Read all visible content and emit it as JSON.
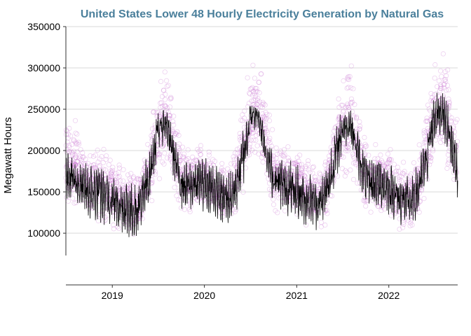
{
  "colors": {
    "title": "#4a7f9b",
    "points": "#c76fd0",
    "line": "#000000",
    "grid": "#d9d9d9",
    "axis": "#333333"
  },
  "chart_data": {
    "type": "scatter",
    "title": "United States Lower 48 Hourly Electricity Generation by Natural Gas",
    "xlabel": "",
    "ylabel": "Megawatt Hours",
    "x_ticks": [
      "2019",
      "2020",
      "2021",
      "2022"
    ],
    "y_ticks": [
      "100000",
      "150000",
      "200000",
      "250000",
      "300000",
      "350000"
    ],
    "xlim": [
      "2018-07-01",
      "2022-10-01"
    ],
    "ylim": [
      73000,
      350000
    ],
    "grid": "horizontal",
    "series": [
      {
        "kind": "points",
        "description": "hourly generation (open circles)",
        "x": [
          "2018-07-01",
          "2018-08-01",
          "2018-09-01",
          "2018-10-01",
          "2018-11-01",
          "2018-12-01",
          "2019-01-01",
          "2019-02-01",
          "2019-03-01",
          "2019-04-01",
          "2019-05-01",
          "2019-06-01",
          "2019-07-01",
          "2019-08-01",
          "2019-09-01",
          "2019-10-01",
          "2019-11-01",
          "2019-12-01",
          "2020-01-01",
          "2020-02-01",
          "2020-03-01",
          "2020-04-01",
          "2020-05-01",
          "2020-06-01",
          "2020-07-01",
          "2020-08-01",
          "2020-09-01",
          "2020-10-01",
          "2020-11-01",
          "2020-12-01",
          "2021-01-01",
          "2021-02-01",
          "2021-03-01",
          "2021-04-01",
          "2021-05-01",
          "2021-06-01",
          "2021-07-01",
          "2021-08-01",
          "2021-09-01",
          "2021-10-01",
          "2021-11-01",
          "2021-12-01",
          "2022-01-01",
          "2022-02-01",
          "2022-03-01",
          "2022-04-01",
          "2022-05-01",
          "2022-06-01",
          "2022-07-01",
          "2022-08-01",
          "2022-09-01",
          "2022-10-01"
        ],
        "min": [
          110000,
          115000,
          110000,
          100000,
          100000,
          100000,
          95000,
          90000,
          85000,
          85000,
          95000,
          120000,
          150000,
          155000,
          135000,
          115000,
          110000,
          115000,
          120000,
          115000,
          105000,
          100000,
          110000,
          135000,
          165000,
          170000,
          140000,
          120000,
          115000,
          115000,
          110000,
          105000,
          100000,
          95000,
          105000,
          130000,
          150000,
          150000,
          130000,
          115000,
          115000,
          110000,
          110000,
          100000,
          95000,
          95000,
          110000,
          135000,
          165000,
          170000,
          145000,
          125000
        ],
        "max": [
          265000,
          255000,
          230000,
          215000,
          215000,
          215000,
          205000,
          200000,
          185000,
          185000,
          200000,
          240000,
          300000,
          315000,
          265000,
          225000,
          215000,
          215000,
          210000,
          205000,
          200000,
          190000,
          215000,
          270000,
          315000,
          325000,
          275000,
          225000,
          220000,
          215000,
          210000,
          200000,
          195000,
          185000,
          215000,
          270000,
          300000,
          330000,
          270000,
          230000,
          220000,
          220000,
          215000,
          205000,
          195000,
          190000,
          215000,
          280000,
          330000,
          340000,
          300000,
          260000
        ]
      },
      {
        "kind": "line",
        "description": "daily average",
        "x": [
          "2018-07-01",
          "2018-08-01",
          "2018-09-01",
          "2018-10-01",
          "2018-11-01",
          "2018-12-01",
          "2019-01-01",
          "2019-02-01",
          "2019-03-01",
          "2019-04-01",
          "2019-05-01",
          "2019-06-01",
          "2019-07-01",
          "2019-08-01",
          "2019-09-01",
          "2019-10-01",
          "2019-11-01",
          "2019-12-01",
          "2020-01-01",
          "2020-02-01",
          "2020-03-01",
          "2020-04-01",
          "2020-05-01",
          "2020-06-01",
          "2020-07-01",
          "2020-08-01",
          "2020-09-01",
          "2020-10-01",
          "2020-11-01",
          "2020-12-01",
          "2021-01-01",
          "2021-02-01",
          "2021-03-01",
          "2021-04-01",
          "2021-05-01",
          "2021-06-01",
          "2021-07-01",
          "2021-08-01",
          "2021-09-01",
          "2021-10-01",
          "2021-11-01",
          "2021-12-01",
          "2022-01-01",
          "2022-02-01",
          "2022-03-01",
          "2022-04-01",
          "2022-05-01",
          "2022-06-01",
          "2022-07-01",
          "2022-08-01",
          "2022-09-01",
          "2022-10-01"
        ],
        "values": [
          175000,
          165000,
          155000,
          150000,
          150000,
          145000,
          140000,
          135000,
          130000,
          128000,
          140000,
          175000,
          225000,
          235000,
          195000,
          160000,
          155000,
          160000,
          160000,
          155000,
          145000,
          140000,
          150000,
          190000,
          240000,
          245000,
          200000,
          165000,
          160000,
          155000,
          150000,
          140000,
          140000,
          135000,
          150000,
          190000,
          225000,
          235000,
          195000,
          165000,
          160000,
          160000,
          155000,
          145000,
          140000,
          135000,
          155000,
          195000,
          240000,
          250000,
          215000,
          175000
        ],
        "low": [
          130000,
          125000,
          118000,
          110000,
          112000,
          110000,
          105000,
          98000,
          95000,
          95000,
          105000,
          135000,
          180000,
          195000,
          155000,
          125000,
          120000,
          125000,
          125000,
          120000,
          112000,
          105000,
          115000,
          145000,
          195000,
          205000,
          165000,
          130000,
          125000,
          120000,
          118000,
          110000,
          105000,
          100000,
          115000,
          150000,
          185000,
          195000,
          155000,
          130000,
          125000,
          125000,
          120000,
          112000,
          105000,
          103000,
          120000,
          155000,
          195000,
          205000,
          170000,
          140000
        ],
        "high": [
          200000,
          195000,
          190000,
          185000,
          195000,
          200000,
          185000,
          180000,
          175000,
          175000,
          190000,
          215000,
          245000,
          250000,
          225000,
          195000,
          195000,
          200000,
          200000,
          195000,
          185000,
          180000,
          195000,
          235000,
          255000,
          250000,
          225000,
          200000,
          200000,
          200000,
          195000,
          185000,
          180000,
          175000,
          195000,
          240000,
          245000,
          250000,
          225000,
          200000,
          200000,
          195000,
          195000,
          185000,
          180000,
          175000,
          195000,
          240000,
          270000,
          270000,
          250000,
          215000
        ]
      }
    ]
  }
}
